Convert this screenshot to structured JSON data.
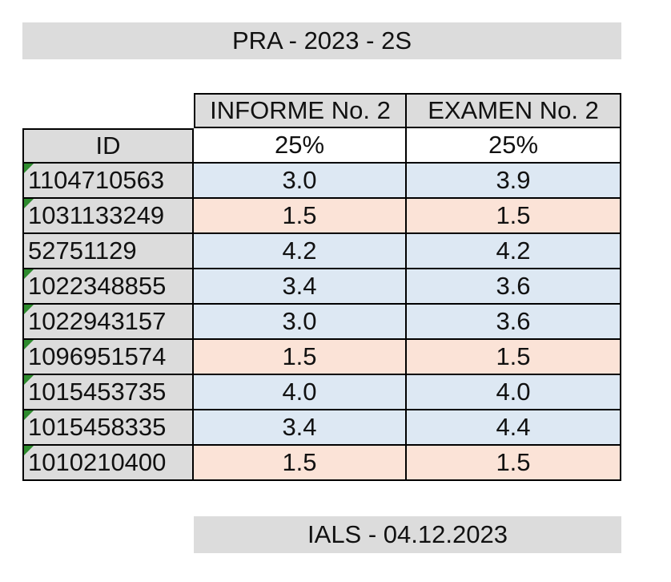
{
  "title": "PRA - 2023 - 2S",
  "footer": "IALS - 04.12.2023",
  "columns": {
    "id": "ID",
    "informe": "INFORME No. 2",
    "examen": "EXAMEN No. 2"
  },
  "weights": {
    "informe": "25%",
    "examen": "25%"
  },
  "colors": {
    "pass_fill": "#dde8f3",
    "fail_fill": "#fbe3d7",
    "header_fill": "#dcdcdc",
    "flag": "#2e8b2e"
  },
  "rows": [
    {
      "id": "1104710563",
      "informe": "3.0",
      "examen": "3.9",
      "status": "pass",
      "flag": true
    },
    {
      "id": "1031133249",
      "informe": "1.5",
      "examen": "1.5",
      "status": "fail",
      "flag": true
    },
    {
      "id": "52751129",
      "informe": "4.2",
      "examen": "4.2",
      "status": "pass",
      "flag": false
    },
    {
      "id": "1022348855",
      "informe": "3.4",
      "examen": "3.6",
      "status": "pass",
      "flag": true
    },
    {
      "id": "1022943157",
      "informe": "3.0",
      "examen": "3.6",
      "status": "pass",
      "flag": true
    },
    {
      "id": "1096951574",
      "informe": "1.5",
      "examen": "1.5",
      "status": "fail",
      "flag": true
    },
    {
      "id": "1015453735",
      "informe": "4.0",
      "examen": "4.0",
      "status": "pass",
      "flag": true
    },
    {
      "id": "1015458335",
      "informe": "3.4",
      "examen": "4.4",
      "status": "pass",
      "flag": true
    },
    {
      "id": "1010210400",
      "informe": "1.5",
      "examen": "1.5",
      "status": "fail",
      "flag": true
    }
  ]
}
